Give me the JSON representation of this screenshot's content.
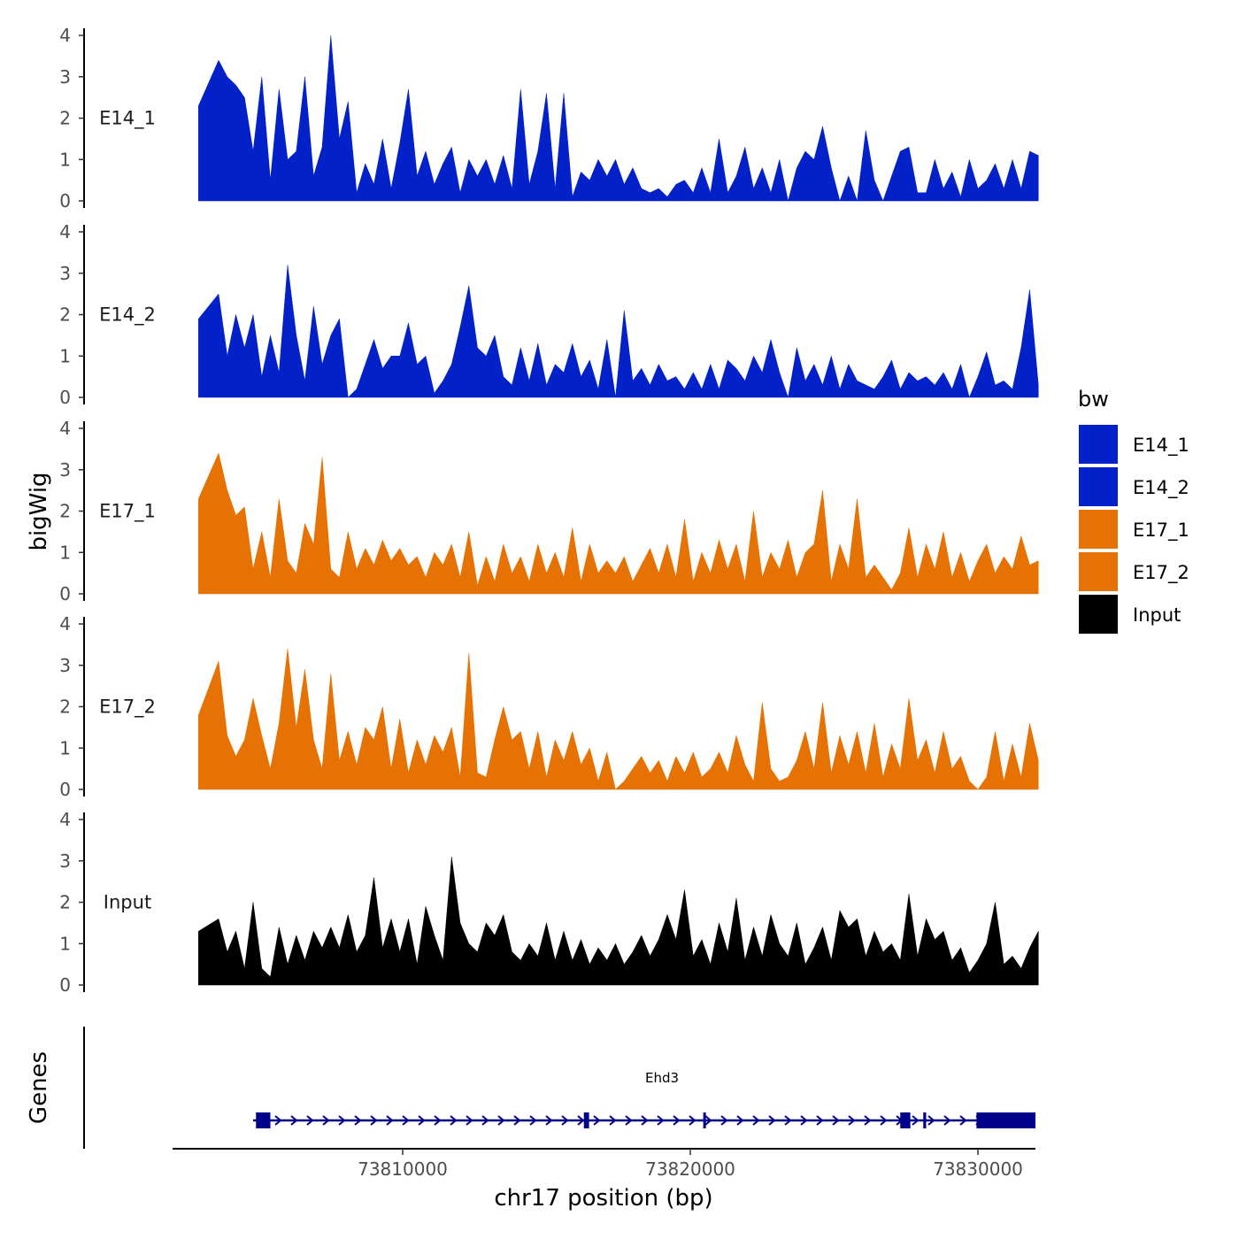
{
  "chart_data": {
    "type": "area",
    "ylabel": "bigWig",
    "xlabel": "chr17 position (bp)",
    "genes_label": "Genes",
    "xlim": [
      73802000,
      73832000
    ],
    "ylim": [
      0,
      4
    ],
    "yticks": [
      0,
      1,
      2,
      3,
      4
    ],
    "xticks": [
      73810000,
      73820000,
      73830000
    ],
    "xtick_labels": [
      "73810000",
      "73820000",
      "73830000"
    ],
    "ytick_labels": [
      "0",
      "1",
      "2",
      "3",
      "4"
    ],
    "legend": {
      "title": "bw",
      "entries": [
        {
          "label": "E14_1",
          "color": "#0321c8"
        },
        {
          "label": "E14_2",
          "color": "#0321c8"
        },
        {
          "label": "E17_1",
          "color": "#e67204"
        },
        {
          "label": "E17_2",
          "color": "#e67204"
        },
        {
          "label": "Input",
          "color": "#000000"
        }
      ]
    },
    "series": [
      {
        "name": "E14_1",
        "color": "#0321c8",
        "x": [
          73802900,
          73803600,
          73803900,
          73804200,
          73804500,
          73804800,
          73805100,
          73805400,
          73805700,
          73806000,
          73806300,
          73806600,
          73806900,
          73807200,
          73807500,
          73807800,
          73808100,
          73808400,
          73808700,
          73809000,
          73809300,
          73809600,
          73809900,
          73810200,
          73810500,
          73810800,
          73811100,
          73811400,
          73811700,
          73812000,
          73812300,
          73812600,
          73812900,
          73813200,
          73813500,
          73813800,
          73814100,
          73814400,
          73814700,
          73815000,
          73815300,
          73815600,
          73815900,
          73816200,
          73816500,
          73816800,
          73817100,
          73817400,
          73817700,
          73818000,
          73818300,
          73818600,
          73818900,
          73819200,
          73819500,
          73819800,
          73820100,
          73820400,
          73820700,
          73821000,
          73821300,
          73821600,
          73821900,
          73822200,
          73822500,
          73822800,
          73823100,
          73823400,
          73823700,
          73824000,
          73824300,
          73824600,
          73824900,
          73825200,
          73825500,
          73825800,
          73826100,
          73826400,
          73826700,
          73827000,
          73827300,
          73827600,
          73827900,
          73828200,
          73828500,
          73828800,
          73829100,
          73829400,
          73829700,
          73830000,
          73830300,
          73830600,
          73830900,
          73831200,
          73831500,
          73831800,
          73832100
        ],
        "values": [
          2.3,
          3.4,
          3.0,
          2.8,
          2.5,
          1.2,
          3.0,
          0.5,
          2.7,
          1.0,
          1.2,
          3.0,
          0.6,
          1.3,
          4.0,
          1.5,
          2.4,
          0.2,
          0.9,
          0.4,
          1.5,
          0.3,
          1.4,
          2.7,
          0.6,
          1.2,
          0.4,
          0.9,
          1.3,
          0.2,
          1.0,
          0.6,
          1.0,
          0.4,
          1.1,
          0.3,
          2.7,
          0.4,
          1.2,
          2.6,
          0.3,
          2.6,
          0.1,
          0.7,
          0.5,
          1.0,
          0.6,
          1.0,
          0.4,
          0.8,
          0.3,
          0.2,
          0.3,
          0.1,
          0.4,
          0.5,
          0.2,
          0.8,
          0.2,
          1.5,
          0.2,
          0.6,
          1.3,
          0.3,
          0.8,
          0.2,
          1.0,
          0.0,
          0.8,
          1.2,
          1.0,
          1.8,
          0.8,
          0.0,
          0.6,
          0.0,
          1.7,
          0.5,
          0.0,
          0.6,
          1.2,
          1.3,
          0.2,
          0.2,
          1.0,
          0.3,
          0.7,
          0.1,
          1.0,
          0.3,
          0.5,
          0.9,
          0.3,
          1.0,
          0.3,
          1.2,
          1.1
        ]
      },
      {
        "name": "E14_2",
        "color": "#0321c8",
        "x": [
          73802900,
          73803600,
          73803900,
          73804200,
          73804500,
          73804800,
          73805100,
          73805400,
          73805700,
          73806000,
          73806300,
          73806600,
          73806900,
          73807200,
          73807500,
          73807800,
          73808100,
          73808400,
          73808700,
          73809000,
          73809300,
          73809600,
          73809900,
          73810200,
          73810500,
          73810800,
          73811100,
          73811400,
          73811700,
          73812000,
          73812300,
          73812600,
          73812900,
          73813200,
          73813500,
          73813800,
          73814100,
          73814400,
          73814700,
          73815000,
          73815300,
          73815600,
          73815900,
          73816200,
          73816500,
          73816800,
          73817100,
          73817400,
          73817700,
          73818000,
          73818300,
          73818600,
          73818900,
          73819200,
          73819500,
          73819800,
          73820100,
          73820400,
          73820700,
          73821000,
          73821300,
          73821600,
          73821900,
          73822200,
          73822500,
          73822800,
          73823100,
          73823400,
          73823700,
          73824000,
          73824300,
          73824600,
          73824900,
          73825200,
          73825500,
          73825800,
          73826100,
          73826400,
          73826700,
          73827000,
          73827300,
          73827600,
          73827900,
          73828200,
          73828500,
          73828800,
          73829100,
          73829400,
          73829700,
          73830000,
          73830300,
          73830600,
          73830900,
          73831200,
          73831500,
          73831800,
          73832100
        ],
        "values": [
          1.9,
          2.5,
          1.0,
          2.0,
          1.2,
          2.0,
          0.5,
          1.5,
          0.6,
          3.2,
          1.5,
          0.4,
          2.2,
          0.8,
          1.5,
          1.9,
          0.0,
          0.2,
          0.8,
          1.4,
          0.7,
          1.0,
          1.0,
          1.8,
          0.8,
          1.0,
          0.1,
          0.4,
          0.8,
          1.7,
          2.7,
          1.2,
          1.0,
          1.5,
          0.5,
          0.3,
          1.2,
          0.4,
          1.3,
          0.3,
          0.8,
          0.6,
          1.3,
          0.5,
          0.9,
          0.2,
          1.4,
          0.0,
          2.1,
          0.4,
          0.7,
          0.3,
          0.8,
          0.4,
          0.5,
          0.2,
          0.6,
          0.2,
          0.8,
          0.2,
          0.9,
          0.7,
          0.4,
          1.0,
          0.6,
          1.4,
          0.6,
          0.0,
          1.2,
          0.4,
          0.8,
          0.3,
          1.0,
          0.2,
          0.8,
          0.4,
          0.3,
          0.2,
          0.5,
          0.9,
          0.2,
          0.6,
          0.4,
          0.5,
          0.3,
          0.6,
          0.2,
          0.8,
          0.0,
          0.5,
          1.1,
          0.3,
          0.4,
          0.2,
          1.2,
          2.6,
          0.3
        ]
      },
      {
        "name": "E17_1",
        "color": "#e67204",
        "x": [
          73802900,
          73803600,
          73803900,
          73804200,
          73804500,
          73804800,
          73805100,
          73805400,
          73805700,
          73806000,
          73806300,
          73806600,
          73806900,
          73807200,
          73807500,
          73807800,
          73808100,
          73808400,
          73808700,
          73809000,
          73809300,
          73809600,
          73809900,
          73810200,
          73810500,
          73810800,
          73811100,
          73811400,
          73811700,
          73812000,
          73812300,
          73812600,
          73812900,
          73813200,
          73813500,
          73813800,
          73814100,
          73814400,
          73814700,
          73815000,
          73815300,
          73815600,
          73815900,
          73816200,
          73816500,
          73816800,
          73817100,
          73817400,
          73817700,
          73818000,
          73818300,
          73818600,
          73818900,
          73819200,
          73819500,
          73819800,
          73820100,
          73820400,
          73820700,
          73821000,
          73821300,
          73821600,
          73821900,
          73822200,
          73822500,
          73822800,
          73823100,
          73823400,
          73823700,
          73824000,
          73824300,
          73824600,
          73824900,
          73825200,
          73825500,
          73825800,
          73826100,
          73826400,
          73826700,
          73827000,
          73827300,
          73827600,
          73827900,
          73828200,
          73828500,
          73828800,
          73829100,
          73829400,
          73829700,
          73830000,
          73830300,
          73830600,
          73830900,
          73831200,
          73831500,
          73831800,
          73832100
        ],
        "values": [
          2.3,
          3.4,
          2.5,
          1.9,
          2.1,
          0.6,
          1.5,
          0.4,
          2.3,
          0.8,
          0.5,
          1.7,
          1.2,
          3.3,
          0.6,
          0.4,
          1.5,
          0.6,
          1.1,
          0.7,
          1.3,
          0.8,
          1.1,
          0.7,
          0.9,
          0.4,
          1.0,
          0.7,
          1.2,
          0.4,
          1.5,
          0.2,
          0.9,
          0.3,
          1.2,
          0.5,
          0.9,
          0.3,
          1.2,
          0.5,
          1.0,
          0.4,
          1.6,
          0.3,
          1.2,
          0.5,
          0.8,
          0.5,
          0.9,
          0.3,
          0.7,
          1.1,
          0.5,
          1.2,
          0.4,
          1.8,
          0.3,
          1.0,
          0.5,
          1.3,
          0.6,
          1.2,
          0.3,
          2.0,
          0.4,
          1.0,
          0.6,
          1.3,
          0.4,
          1.0,
          1.2,
          2.5,
          0.3,
          1.2,
          0.6,
          2.3,
          0.4,
          0.7,
          0.4,
          0.1,
          0.5,
          1.6,
          0.4,
          1.2,
          0.6,
          1.5,
          0.4,
          1.0,
          0.3,
          0.8,
          1.2,
          0.5,
          0.9,
          0.6,
          1.4,
          0.7,
          0.8
        ]
      },
      {
        "name": "E17_2",
        "color": "#e67204",
        "x": [
          73802900,
          73803600,
          73803900,
          73804200,
          73804500,
          73804800,
          73805100,
          73805400,
          73805700,
          73806000,
          73806300,
          73806600,
          73806900,
          73807200,
          73807500,
          73807800,
          73808100,
          73808400,
          73808700,
          73809000,
          73809300,
          73809600,
          73809900,
          73810200,
          73810500,
          73810800,
          73811100,
          73811400,
          73811700,
          73812000,
          73812300,
          73812600,
          73812900,
          73813200,
          73813500,
          73813800,
          73814100,
          73814400,
          73814700,
          73815000,
          73815300,
          73815600,
          73815900,
          73816200,
          73816500,
          73816800,
          73817100,
          73817400,
          73817700,
          73818000,
          73818300,
          73818600,
          73818900,
          73819200,
          73819500,
          73819800,
          73820100,
          73820400,
          73820700,
          73821000,
          73821300,
          73821600,
          73821900,
          73822200,
          73822500,
          73822800,
          73823100,
          73823400,
          73823700,
          73824000,
          73824300,
          73824600,
          73824900,
          73825200,
          73825500,
          73825800,
          73826100,
          73826400,
          73826700,
          73827000,
          73827300,
          73827600,
          73827900,
          73828200,
          73828500,
          73828800,
          73829100,
          73829400,
          73829700,
          73830000,
          73830300,
          73830600,
          73830900,
          73831200,
          73831500,
          73831800,
          73832100
        ],
        "values": [
          1.8,
          3.1,
          1.3,
          0.8,
          1.2,
          2.2,
          1.3,
          0.5,
          1.6,
          3.4,
          1.5,
          2.9,
          1.2,
          0.5,
          2.8,
          0.7,
          1.4,
          0.6,
          1.5,
          1.2,
          2.0,
          0.5,
          1.7,
          0.4,
          1.2,
          0.6,
          1.3,
          0.9,
          1.5,
          0.3,
          3.3,
          0.4,
          0.3,
          1.2,
          2.0,
          1.2,
          1.4,
          0.5,
          1.4,
          0.3,
          1.2,
          0.7,
          1.4,
          0.6,
          1.0,
          0.2,
          0.9,
          0.0,
          0.2,
          0.5,
          0.8,
          0.4,
          0.7,
          0.2,
          0.8,
          0.4,
          0.9,
          0.3,
          0.5,
          0.9,
          0.4,
          1.3,
          0.6,
          0.2,
          2.1,
          0.5,
          0.2,
          0.3,
          0.7,
          1.4,
          0.5,
          2.1,
          0.4,
          1.3,
          0.6,
          1.4,
          0.4,
          1.6,
          0.3,
          1.1,
          0.5,
          2.2,
          0.7,
          1.2,
          0.4,
          1.4,
          0.5,
          0.8,
          0.2,
          0.0,
          0.3,
          1.4,
          0.2,
          1.1,
          0.3,
          1.6,
          0.7
        ]
      },
      {
        "name": "Input",
        "color": "#000000",
        "x": [
          73802900,
          73803600,
          73803900,
          73804200,
          73804500,
          73804800,
          73805100,
          73805400,
          73805700,
          73806000,
          73806300,
          73806600,
          73806900,
          73807200,
          73807500,
          73807800,
          73808100,
          73808400,
          73808700,
          73809000,
          73809300,
          73809600,
          73809900,
          73810200,
          73810500,
          73810800,
          73811100,
          73811400,
          73811700,
          73812000,
          73812300,
          73812600,
          73812900,
          73813200,
          73813500,
          73813800,
          73814100,
          73814400,
          73814700,
          73815000,
          73815300,
          73815600,
          73815900,
          73816200,
          73816500,
          73816800,
          73817100,
          73817400,
          73817700,
          73818000,
          73818300,
          73818600,
          73818900,
          73819200,
          73819500,
          73819800,
          73820100,
          73820400,
          73820700,
          73821000,
          73821300,
          73821600,
          73821900,
          73822200,
          73822500,
          73822800,
          73823100,
          73823400,
          73823700,
          73824000,
          73824300,
          73824600,
          73824900,
          73825200,
          73825500,
          73825800,
          73826100,
          73826400,
          73826700,
          73827000,
          73827300,
          73827600,
          73827900,
          73828200,
          73828500,
          73828800,
          73829100,
          73829400,
          73829700,
          73830000,
          73830300,
          73830600,
          73830900,
          73831200,
          73831500,
          73831800,
          73832100
        ],
        "values": [
          1.3,
          1.6,
          0.8,
          1.3,
          0.4,
          2.0,
          0.4,
          0.2,
          1.4,
          0.5,
          1.2,
          0.6,
          1.3,
          0.9,
          1.4,
          0.9,
          1.7,
          0.8,
          1.2,
          2.6,
          0.9,
          1.6,
          0.8,
          1.6,
          0.5,
          1.9,
          1.2,
          0.6,
          3.1,
          1.5,
          1.0,
          0.8,
          1.5,
          1.2,
          1.7,
          0.8,
          0.6,
          1.0,
          0.7,
          1.5,
          0.6,
          1.3,
          0.6,
          1.1,
          0.5,
          0.9,
          0.6,
          1.0,
          0.5,
          0.8,
          1.2,
          0.7,
          1.1,
          1.7,
          1.1,
          2.3,
          0.7,
          1.1,
          0.5,
          1.5,
          0.8,
          2.1,
          0.6,
          1.4,
          0.7,
          1.7,
          1.0,
          0.7,
          1.5,
          0.5,
          0.9,
          1.4,
          0.6,
          1.8,
          1.4,
          1.6,
          0.7,
          1.3,
          0.8,
          1.0,
          0.6,
          2.2,
          0.7,
          1.6,
          1.1,
          1.3,
          0.6,
          0.9,
          0.3,
          0.6,
          1.0,
          2.0,
          0.5,
          0.7,
          0.4,
          0.9,
          1.3
        ]
      }
    ],
    "genes": [
      {
        "name": "Ehd3",
        "start": 73804800,
        "end": 73832000,
        "strand": "+",
        "exons": [
          [
            73804900,
            73805400
          ],
          [
            73816300,
            73816480
          ],
          [
            73820450,
            73820520
          ],
          [
            73827300,
            73827650
          ],
          [
            73828100,
            73828200
          ],
          [
            73829950,
            73832000
          ]
        ]
      }
    ]
  }
}
